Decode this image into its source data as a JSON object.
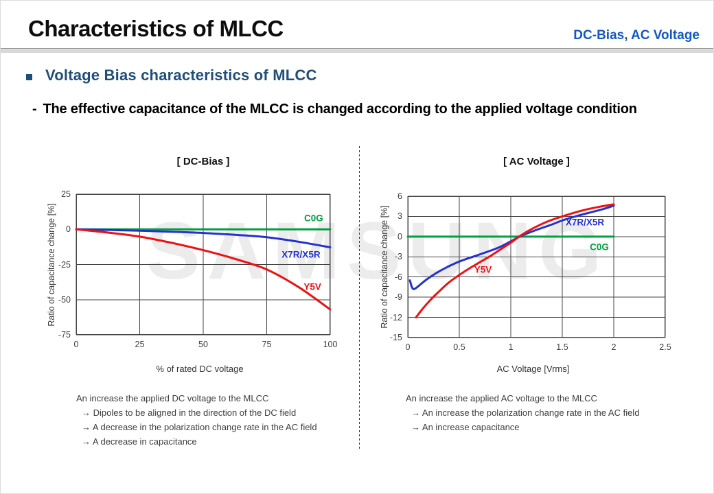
{
  "header": {
    "title": "Characteristics of MLCC",
    "topic": "DC-Bias, AC Voltage"
  },
  "section": {
    "title": "Voltage Bias characteristics of MLCC",
    "dash": "-",
    "description": "The effective capacitance of the MLCC is changed according to the applied voltage condition"
  },
  "watermark": "SAMSUNG",
  "colors": {
    "accent_navy": "#1F4E79",
    "topic_blue": "#1159C1",
    "c0g_green": "#00A13C",
    "x7r_blue": "#2232D2",
    "y5v_red": "#EE1111",
    "grid": "#444444",
    "watermark_gray": "#ECECEC"
  },
  "chart_data": [
    {
      "type": "line",
      "title": "[ DC-Bias ]",
      "xlabel": "% of rated DC voltage",
      "ylabel": "Ratio of capacitance change [%]",
      "xlim": [
        0,
        100
      ],
      "ylim": [
        -75,
        25
      ],
      "xticks": [
        0,
        25,
        50,
        75,
        100
      ],
      "yticks": [
        25,
        0,
        -25,
        -50,
        -75
      ],
      "grid": true,
      "series": [
        {
          "name": "C0G",
          "color": "#00A13C",
          "label_pos": [
            93.5,
            8
          ],
          "points": [
            [
              0,
              0
            ],
            [
              100,
              0
            ]
          ]
        },
        {
          "name": "X7R/X5R",
          "color": "#2232D2",
          "label_pos": [
            88.5,
            -18
          ],
          "points": [
            [
              0,
              0
            ],
            [
              12.5,
              -0.4
            ],
            [
              25,
              -1.0
            ],
            [
              37.5,
              -1.7
            ],
            [
              50,
              -2.6
            ],
            [
              62.5,
              -3.9
            ],
            [
              75,
              -5.6
            ],
            [
              87.5,
              -8.8
            ],
            [
              100,
              -12.8
            ]
          ]
        },
        {
          "name": "Y5V",
          "color": "#EE1111",
          "label_pos": [
            93,
            -41
          ],
          "points": [
            [
              0,
              0
            ],
            [
              12.5,
              -2.3
            ],
            [
              25,
              -5.2
            ],
            [
              37.5,
              -9.6
            ],
            [
              50,
              -14.8
            ],
            [
              62.5,
              -21
            ],
            [
              75,
              -28.5
            ],
            [
              87.5,
              -41
            ],
            [
              100,
              -57
            ]
          ]
        }
      ]
    },
    {
      "type": "line",
      "title": "[ AC Voltage ]",
      "xlabel": "AC Voltage [Vrms]",
      "ylabel": "Ratio of capacitance change [%]",
      "xlim": [
        0,
        2.5
      ],
      "ylim": [
        -15,
        6
      ],
      "xticks": [
        0,
        0.5,
        1,
        1.5,
        2,
        2.5
      ],
      "yticks": [
        6,
        3,
        0,
        -3,
        -6,
        -9,
        -12,
        -15
      ],
      "grid": true,
      "series": [
        {
          "name": "C0G",
          "color": "#00A13C",
          "label_pos": [
            1.86,
            -1.5
          ],
          "points": [
            [
              0,
              0
            ],
            [
              2,
              0
            ]
          ]
        },
        {
          "name": "X7R/X5R",
          "color": "#2232D2",
          "label_pos": [
            1.72,
            2.1
          ],
          "points": [
            [
              0.02,
              -6.5
            ],
            [
              0.04,
              -7.5
            ],
            [
              0.06,
              -7.8
            ],
            [
              0.1,
              -7.4
            ],
            [
              0.18,
              -6.4
            ],
            [
              0.3,
              -5.2
            ],
            [
              0.4,
              -4.4
            ],
            [
              0.5,
              -3.7
            ],
            [
              0.65,
              -2.9
            ],
            [
              0.8,
              -2.1
            ],
            [
              0.9,
              -1.5
            ],
            [
              1.0,
              -0.7
            ],
            [
              1.1,
              0.1
            ],
            [
              1.25,
              1.0
            ],
            [
              1.4,
              1.8
            ],
            [
              1.5,
              2.4
            ],
            [
              1.65,
              3.1
            ],
            [
              1.8,
              3.7
            ],
            [
              1.9,
              4.1
            ],
            [
              2.0,
              4.6
            ]
          ]
        },
        {
          "name": "Y5V",
          "color": "#EE1111",
          "label_pos": [
            0.73,
            -4.9
          ],
          "points": [
            [
              0.08,
              -12
            ],
            [
              0.14,
              -10.8
            ],
            [
              0.22,
              -9.4
            ],
            [
              0.3,
              -8.2
            ],
            [
              0.4,
              -6.8
            ],
            [
              0.5,
              -5.7
            ],
            [
              0.6,
              -4.7
            ],
            [
              0.7,
              -3.8
            ],
            [
              0.8,
              -2.9
            ],
            [
              0.9,
              -1.9
            ],
            [
              1.0,
              -0.9
            ],
            [
              1.1,
              0.2
            ],
            [
              1.2,
              1.1
            ],
            [
              1.35,
              2.2
            ],
            [
              1.5,
              3.0
            ],
            [
              1.7,
              3.9
            ],
            [
              1.85,
              4.4
            ],
            [
              2.0,
              4.8
            ]
          ]
        }
      ]
    }
  ],
  "annotations": {
    "dc": {
      "title": "An increase the applied DC voltage to the MLCC",
      "items": [
        "→ Dipoles to be aligned in the direction of the DC field",
        "→ A decrease in the polarization change rate in the AC field",
        "→ A decrease in capacitance"
      ]
    },
    "ac": {
      "title": "An increase the applied AC voltage to the MLCC",
      "items": [
        "→ An increase the polarization change rate in the AC field",
        "→ An increase capacitance"
      ]
    }
  }
}
